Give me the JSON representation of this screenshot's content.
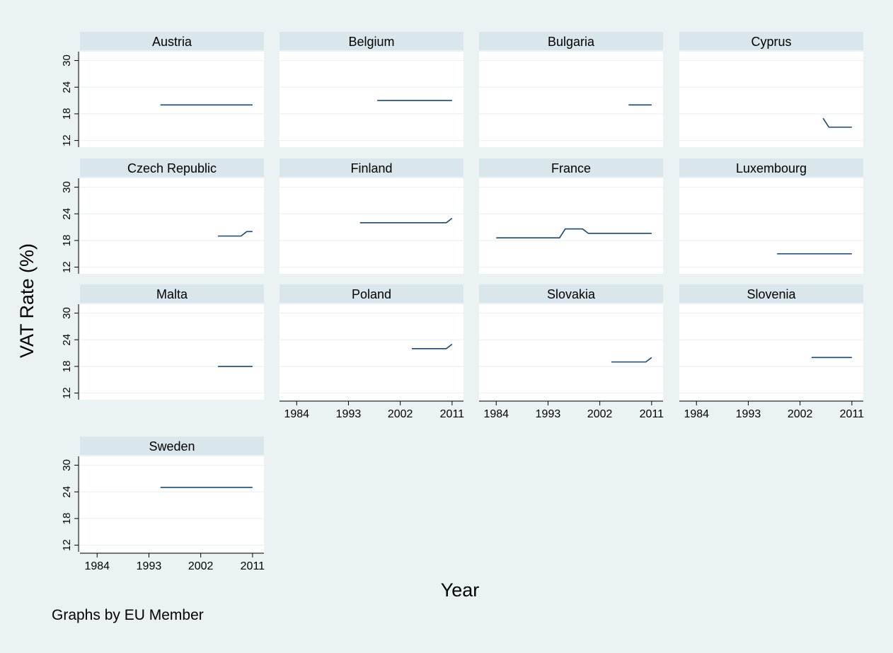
{
  "chart_data": {
    "type": "line",
    "ylabel": "VAT Rate (%)",
    "xlabel": "Year",
    "note": "Graphs by EU Member",
    "xlim": [
      1982,
      2012
    ],
    "ylim": [
      10.5,
      32
    ],
    "xticks": [
      "1984",
      "1993",
      "2002",
      "2011"
    ],
    "yticks": [
      "12",
      "18",
      "24",
      "30"
    ],
    "grid": true,
    "colors": {
      "line": "#1a476f",
      "header": "#d9e6eb",
      "plot": "#ffffff",
      "grid": "#eaf2f3",
      "background": "#eaf2f3"
    },
    "panels": [
      {
        "name": "Austria",
        "x": [
          1995,
          2011
        ],
        "y": [
          20,
          20
        ]
      },
      {
        "name": "Belgium",
        "x": [
          1998,
          2011
        ],
        "y": [
          21,
          21
        ]
      },
      {
        "name": "Bulgaria",
        "x": [
          2007,
          2011
        ],
        "y": [
          20,
          20
        ]
      },
      {
        "name": "Cyprus",
        "x": [
          2006,
          2007,
          2011
        ],
        "y": [
          17,
          15,
          15
        ]
      },
      {
        "name": "Czech Republic",
        "x": [
          2005,
          2009,
          2010,
          2011
        ],
        "y": [
          19,
          19,
          20,
          20
        ]
      },
      {
        "name": "Finland",
        "x": [
          1995,
          2010,
          2011
        ],
        "y": [
          22,
          22,
          23
        ]
      },
      {
        "name": "France",
        "x": [
          1984,
          1995,
          1996,
          1999,
          2000,
          2011
        ],
        "y": [
          18.6,
          18.6,
          20.6,
          20.6,
          19.6,
          19.6
        ]
      },
      {
        "name": "Luxembourg",
        "x": [
          1998,
          2011
        ],
        "y": [
          15,
          15
        ]
      },
      {
        "name": "Malta",
        "x": [
          2005,
          2011
        ],
        "y": [
          18,
          18
        ]
      },
      {
        "name": "Poland",
        "x": [
          2004,
          2010,
          2011
        ],
        "y": [
          22,
          22,
          23
        ]
      },
      {
        "name": "Slovakia",
        "x": [
          2004,
          2010,
          2011
        ],
        "y": [
          19,
          19,
          20
        ]
      },
      {
        "name": "Slovenia",
        "x": [
          2004,
          2011
        ],
        "y": [
          20,
          20
        ]
      },
      {
        "name": "Sweden",
        "x": [
          1995,
          2011
        ],
        "y": [
          25,
          25
        ]
      }
    ]
  }
}
